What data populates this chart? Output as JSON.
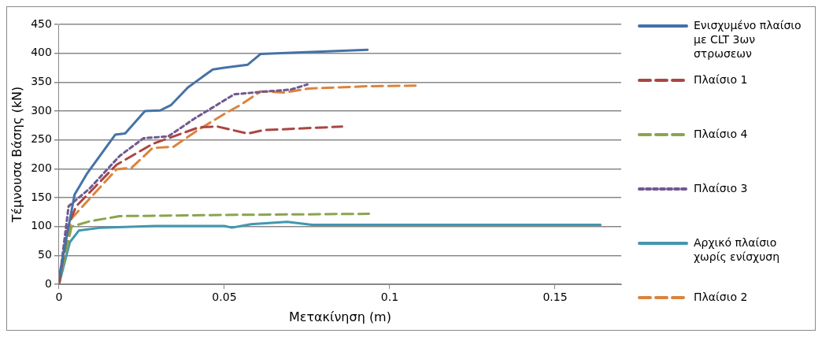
{
  "chart_data": {
    "type": "line",
    "xlabel": "Μετακίνηση (m)",
    "ylabel": "Τέμνουσα Βάσης (kN)",
    "xlim": [
      0,
      0.17
    ],
    "xticks": [
      0,
      0.05,
      0.1,
      0.15
    ],
    "ylim": [
      0,
      450
    ],
    "yticks": [
      0,
      50,
      100,
      150,
      200,
      250,
      300,
      350,
      400,
      450
    ],
    "grid": "y",
    "legend": "right",
    "marker": "none",
    "series": [
      {
        "name": "Ενισχυμένο πλαίσιο με CLT 3ων στρωσεων",
        "color": "#4572a7",
        "line_style": "solid",
        "x": [
          0,
          0.0047,
          0.0084,
          0.017,
          0.02,
          0.026,
          0.0306,
          0.0338,
          0.039,
          0.0465,
          0.05,
          0.057,
          0.061,
          0.0933
        ],
        "values": [
          11,
          155,
          191,
          259,
          261,
          300,
          301,
          310,
          341,
          372,
          375,
          380,
          399,
          406
        ]
      },
      {
        "name": "Πλαίσιο 1",
        "color": "#aa4643",
        "line_style": "dashed",
        "x": [
          0,
          0.0029,
          0.0052,
          0.0174,
          0.0283,
          0.0424,
          0.048,
          0.057,
          0.062,
          0.0856
        ],
        "values": [
          0,
          104,
          135,
          207,
          243,
          272,
          273,
          261,
          267,
          273
        ]
      },
      {
        "name": "Πλαίσιο 4",
        "color": "#89a54e",
        "line_style": "dashed",
        "x": [
          0,
          0.0038,
          0.0093,
          0.0183,
          0.05,
          0.0937
        ],
        "values": [
          0,
          100,
          109,
          118,
          120,
          122
        ]
      },
      {
        "name": "Πλαίσιο 3",
        "color": "#71588f",
        "line_style": "dotted",
        "x": [
          0,
          0.0029,
          0.0093,
          0.0183,
          0.0256,
          0.033,
          0.041,
          0.053,
          0.0629,
          0.07,
          0.0751
        ],
        "values": [
          0,
          135,
          166,
          222,
          253,
          256,
          287,
          329,
          334,
          337,
          346
        ]
      },
      {
        "name": "Αρχικό πλαίσιο χωρίς ενίσχυση",
        "color": "#4198af",
        "line_style": "solid",
        "x": [
          0,
          0.0033,
          0.006,
          0.0128,
          0.029,
          0.05,
          0.0523,
          0.058,
          0.069,
          0.0765,
          0.1637
        ],
        "values": [
          0,
          73,
          93,
          98,
          101,
          101,
          98,
          104,
          108,
          103,
          103
        ]
      },
      {
        "name": "Πλαίσιο 2",
        "color": "#db843d",
        "line_style": "dashed",
        "x": [
          0,
          0.0038,
          0.0174,
          0.022,
          0.0283,
          0.0346,
          0.042,
          0.05,
          0.0547,
          0.061,
          0.0683,
          0.0755,
          0.0937,
          0.1078
        ],
        "values": [
          0,
          114,
          199,
          202,
          236,
          238,
          267,
          295,
          310,
          334,
          332,
          339,
          343,
          344
        ]
      }
    ]
  }
}
